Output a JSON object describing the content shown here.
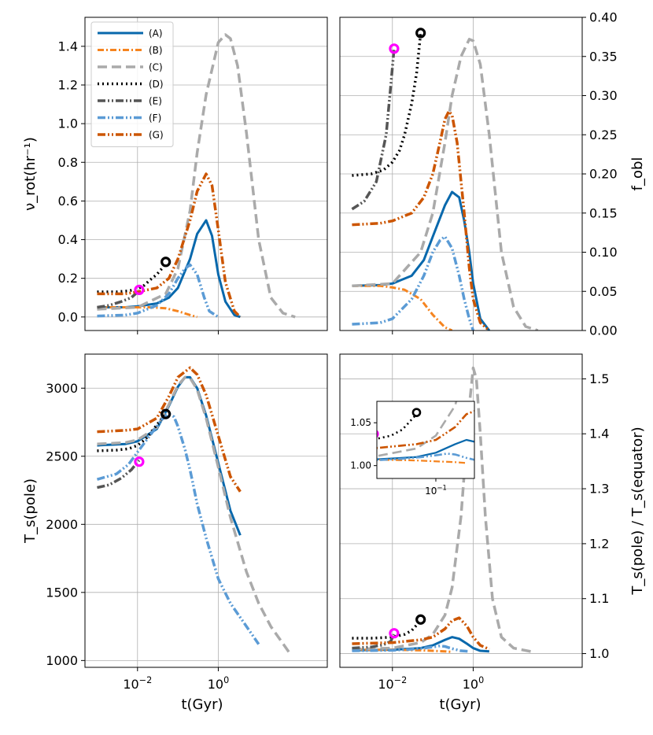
{
  "figure": {
    "x_axis_label": "t(Gyr)",
    "legend": [
      "(A)",
      "(B)",
      "(C)",
      "(D)",
      "(E)",
      "(F)",
      "(G)"
    ]
  },
  "chart_data": [
    {
      "panel": "top-left",
      "type": "line",
      "ylabel": "ν_rot(hr⁻¹)",
      "xscale": "log",
      "xlim": [
        0.0005,
        500
      ],
      "ylim": [
        -0.07,
        1.55
      ],
      "yticks": [
        0.0,
        0.2,
        0.4,
        0.6,
        0.8,
        1.0,
        1.2,
        1.4
      ],
      "ytick_labels": [
        "0.0",
        "0.2",
        "0.4",
        "0.6",
        "0.8",
        "1.0",
        "1.2",
        "1.4"
      ],
      "xticks": [
        0.01,
        1
      ],
      "grid": true,
      "legend_position": "top-left",
      "series": [
        {
          "name": "(A)",
          "x": [
            0.001,
            0.005,
            0.01,
            0.03,
            0.06,
            0.1,
            0.2,
            0.3,
            0.5,
            0.7,
            1.0,
            1.5,
            2.5,
            3.5
          ],
          "y": [
            0.05,
            0.05,
            0.055,
            0.07,
            0.1,
            0.15,
            0.3,
            0.43,
            0.5,
            0.42,
            0.22,
            0.08,
            0.01,
            0.0
          ]
        },
        {
          "name": "(B)",
          "x": [
            0.001,
            0.005,
            0.01,
            0.02,
            0.05,
            0.1,
            0.2,
            0.3
          ],
          "y": [
            0.05,
            0.05,
            0.05,
            0.05,
            0.045,
            0.03,
            0.01,
            0.0
          ]
        },
        {
          "name": "(C)",
          "x": [
            0.001,
            0.01,
            0.05,
            0.1,
            0.2,
            0.3,
            0.5,
            1.0,
            1.5,
            2.0,
            3.0,
            5.0,
            10,
            20,
            40,
            80
          ],
          "y": [
            0.04,
            0.05,
            0.12,
            0.25,
            0.55,
            0.85,
            1.15,
            1.42,
            1.46,
            1.44,
            1.3,
            0.95,
            0.4,
            0.1,
            0.02,
            0.0
          ]
        },
        {
          "name": "(D)",
          "x": [
            0.001,
            0.003,
            0.006,
            0.01,
            0.015,
            0.02,
            0.03,
            0.04,
            0.05
          ],
          "y": [
            0.13,
            0.13,
            0.135,
            0.145,
            0.165,
            0.19,
            0.22,
            0.25,
            0.28
          ]
        },
        {
          "name": "(E)",
          "x": [
            0.001,
            0.002,
            0.004,
            0.007,
            0.009,
            0.011
          ],
          "y": [
            0.05,
            0.06,
            0.08,
            0.1,
            0.12,
            0.14
          ]
        },
        {
          "name": "(F)",
          "x": [
            0.001,
            0.005,
            0.01,
            0.03,
            0.06,
            0.1,
            0.15,
            0.2,
            0.3,
            0.45,
            0.6,
            1.0
          ],
          "y": [
            0.005,
            0.01,
            0.02,
            0.06,
            0.12,
            0.2,
            0.25,
            0.27,
            0.22,
            0.1,
            0.03,
            0.0
          ]
        },
        {
          "name": "(G)",
          "x": [
            0.001,
            0.005,
            0.01,
            0.03,
            0.06,
            0.1,
            0.2,
            0.3,
            0.5,
            0.7,
            1.0,
            1.5,
            2.5,
            3.5
          ],
          "y": [
            0.12,
            0.12,
            0.13,
            0.15,
            0.2,
            0.3,
            0.5,
            0.65,
            0.74,
            0.68,
            0.45,
            0.18,
            0.03,
            0.0
          ]
        }
      ],
      "markers": [
        {
          "kind": "magenta",
          "x": 0.011,
          "y": 0.14
        },
        {
          "kind": "black",
          "x": 0.05,
          "y": 0.285
        }
      ]
    },
    {
      "panel": "top-right",
      "type": "line",
      "ylabel": "f_obl",
      "xscale": "log",
      "xlim": [
        0.0005,
        500
      ],
      "ylim": [
        0.0,
        0.4
      ],
      "yticks": [
        0.0,
        0.05,
        0.1,
        0.15,
        0.2,
        0.25,
        0.3,
        0.35,
        0.4
      ],
      "ytick_labels": [
        "0.00",
        "0.05",
        "0.10",
        "0.15",
        "0.20",
        "0.25",
        "0.30",
        "0.35",
        "0.40"
      ],
      "xticks": [
        0.01,
        1
      ],
      "grid": true,
      "series": [
        {
          "name": "(A)",
          "x": [
            0.001,
            0.005,
            0.01,
            0.03,
            0.06,
            0.1,
            0.2,
            0.3,
            0.45,
            0.6,
            0.8,
            1.0,
            1.5,
            2.5
          ],
          "y": [
            0.057,
            0.058,
            0.06,
            0.07,
            0.09,
            0.12,
            0.16,
            0.177,
            0.17,
            0.14,
            0.1,
            0.06,
            0.015,
            0.0
          ]
        },
        {
          "name": "(B)",
          "x": [
            0.001,
            0.005,
            0.01,
            0.02,
            0.05,
            0.1,
            0.2,
            0.3
          ],
          "y": [
            0.057,
            0.057,
            0.055,
            0.052,
            0.04,
            0.02,
            0.004,
            0.0
          ]
        },
        {
          "name": "(C)",
          "x": [
            0.001,
            0.01,
            0.05,
            0.1,
            0.2,
            0.3,
            0.5,
            0.8,
            1.0,
            1.5,
            2.5,
            5,
            10,
            20,
            40
          ],
          "y": [
            0.057,
            0.06,
            0.1,
            0.15,
            0.24,
            0.3,
            0.35,
            0.372,
            0.37,
            0.34,
            0.25,
            0.1,
            0.03,
            0.005,
            0.0
          ]
        },
        {
          "name": "(D)",
          "x": [
            0.001,
            0.003,
            0.006,
            0.01,
            0.015,
            0.02,
            0.03,
            0.04,
            0.05
          ],
          "y": [
            0.198,
            0.2,
            0.205,
            0.215,
            0.23,
            0.25,
            0.29,
            0.33,
            0.38
          ]
        },
        {
          "name": "(E)",
          "x": [
            0.001,
            0.002,
            0.004,
            0.007,
            0.009,
            0.011
          ],
          "y": [
            0.155,
            0.165,
            0.19,
            0.25,
            0.31,
            0.36
          ]
        },
        {
          "name": "(F)",
          "x": [
            0.001,
            0.005,
            0.01,
            0.03,
            0.06,
            0.1,
            0.15,
            0.2,
            0.3,
            0.45,
            0.6,
            0.8,
            1.0
          ],
          "y": [
            0.008,
            0.01,
            0.015,
            0.04,
            0.07,
            0.1,
            0.115,
            0.12,
            0.105,
            0.07,
            0.04,
            0.015,
            0.0
          ]
        },
        {
          "name": "(G)",
          "x": [
            0.001,
            0.005,
            0.01,
            0.03,
            0.06,
            0.1,
            0.15,
            0.2,
            0.25,
            0.3,
            0.4,
            0.6,
            0.8,
            1.0,
            1.5,
            2.5
          ],
          "y": [
            0.135,
            0.137,
            0.14,
            0.15,
            0.17,
            0.2,
            0.24,
            0.27,
            0.28,
            0.275,
            0.24,
            0.15,
            0.08,
            0.04,
            0.01,
            0.0
          ]
        }
      ],
      "markers": [
        {
          "kind": "magenta",
          "x": 0.011,
          "y": 0.36
        },
        {
          "kind": "black",
          "x": 0.05,
          "y": 0.38
        }
      ]
    },
    {
      "panel": "bottom-left",
      "type": "line",
      "ylabel": "T_s(pole)",
      "xscale": "log",
      "xlim": [
        0.0005,
        500
      ],
      "ylim": [
        950,
        3250
      ],
      "yticks": [
        1000,
        1500,
        2000,
        2500,
        3000
      ],
      "ytick_labels": [
        "1000",
        "1500",
        "2000",
        "2500",
        "3000"
      ],
      "xticks": [
        0.01,
        1
      ],
      "xtick_labels": [
        "10^-2",
        "10^0"
      ],
      "grid": true,
      "series": [
        {
          "name": "(A)",
          "x": [
            0.001,
            0.005,
            0.01,
            0.03,
            0.06,
            0.1,
            0.15,
            0.2,
            0.3,
            0.5,
            1.0,
            2.0,
            3.5
          ],
          "y": [
            2580,
            2590,
            2610,
            2700,
            2870,
            3010,
            3080,
            3080,
            3000,
            2800,
            2450,
            2100,
            1920
          ]
        },
        {
          "name": "(C)",
          "x": [
            0.001,
            0.005,
            0.01,
            0.03,
            0.06,
            0.1,
            0.15,
            0.2,
            0.3,
            0.5,
            1.0,
            2.0,
            5.0,
            10,
            20,
            60
          ],
          "y": [
            2590,
            2600,
            2620,
            2710,
            2880,
            3020,
            3080,
            3075,
            2990,
            2780,
            2420,
            2050,
            1650,
            1420,
            1250,
            1050
          ]
        },
        {
          "name": "(D)",
          "x": [
            0.001,
            0.003,
            0.006,
            0.01,
            0.015,
            0.02,
            0.03,
            0.05
          ],
          "y": [
            2540,
            2545,
            2555,
            2580,
            2620,
            2660,
            2730,
            2810
          ]
        },
        {
          "name": "(E)",
          "x": [
            0.001,
            0.002,
            0.004,
            0.007,
            0.009,
            0.011
          ],
          "y": [
            2270,
            2290,
            2340,
            2400,
            2440,
            2470
          ]
        },
        {
          "name": "(F)",
          "x": [
            0.001,
            0.003,
            0.006,
            0.01,
            0.02,
            0.04,
            0.06,
            0.08,
            0.1,
            0.15,
            0.2,
            0.3,
            0.5,
            1.0,
            2.0,
            5.0,
            10
          ],
          "y": [
            2330,
            2370,
            2440,
            2530,
            2650,
            2770,
            2810,
            2790,
            2720,
            2550,
            2400,
            2150,
            1900,
            1600,
            1420,
            1250,
            1120
          ]
        },
        {
          "name": "(G)",
          "x": [
            0.001,
            0.005,
            0.01,
            0.03,
            0.06,
            0.1,
            0.2,
            0.3,
            0.5,
            1.0,
            2.0,
            3.5
          ],
          "y": [
            2680,
            2690,
            2700,
            2780,
            2940,
            3080,
            3150,
            3100,
            2950,
            2650,
            2350,
            2240
          ]
        }
      ],
      "markers": [
        {
          "kind": "magenta",
          "x": 0.011,
          "y": 2460
        },
        {
          "kind": "black",
          "x": 0.05,
          "y": 2810
        }
      ]
    },
    {
      "panel": "bottom-right",
      "type": "line",
      "ylabel": "T_s(pole) / T_s(equator)",
      "xscale": "log",
      "xlim": [
        0.0005,
        500
      ],
      "ylim": [
        0.975,
        1.545
      ],
      "yticks": [
        1.0,
        1.1,
        1.2,
        1.3,
        1.4,
        1.5
      ],
      "ytick_labels": [
        "1.0",
        "1.1",
        "1.2",
        "1.3",
        "1.4",
        "1.5"
      ],
      "xticks": [
        0.01,
        1
      ],
      "xtick_labels": [
        "10^-2",
        "10^0"
      ],
      "grid": true,
      "series": [
        {
          "name": "(A)",
          "x": [
            0.001,
            0.01,
            0.05,
            0.1,
            0.2,
            0.3,
            0.45,
            0.7,
            1.0,
            1.5,
            2.5
          ],
          "y": [
            1.006,
            1.007,
            1.01,
            1.015,
            1.025,
            1.03,
            1.027,
            1.018,
            1.01,
            1.005,
            1.004
          ]
        },
        {
          "name": "(B)",
          "x": [
            0.001,
            0.01,
            0.05,
            0.1,
            0.2,
            0.3
          ],
          "y": [
            1.007,
            1.007,
            1.006,
            1.005,
            1.004,
            1.003
          ]
        },
        {
          "name": "(C)",
          "x": [
            0.001,
            0.01,
            0.05,
            0.1,
            0.2,
            0.3,
            0.5,
            0.8,
            1.0,
            1.2,
            1.5,
            2.0,
            3.0,
            5.0,
            10,
            30
          ],
          "y": [
            1.008,
            1.01,
            1.02,
            1.035,
            1.07,
            1.12,
            1.25,
            1.45,
            1.52,
            1.5,
            1.4,
            1.25,
            1.1,
            1.03,
            1.01,
            1.003
          ]
        },
        {
          "name": "(D)",
          "x": [
            0.001,
            0.003,
            0.006,
            0.01,
            0.02,
            0.03,
            0.05
          ],
          "y": [
            1.028,
            1.028,
            1.029,
            1.03,
            1.035,
            1.042,
            1.06
          ]
        },
        {
          "name": "(E)",
          "x": [
            0.001,
            0.003,
            0.006,
            0.009,
            0.011
          ],
          "y": [
            1.01,
            1.012,
            1.016,
            1.022,
            1.035
          ]
        },
        {
          "name": "(F)",
          "x": [
            0.001,
            0.01,
            0.03,
            0.06,
            0.1,
            0.15,
            0.2,
            0.3,
            0.5,
            0.8
          ],
          "y": [
            1.005,
            1.006,
            1.008,
            1.01,
            1.012,
            1.014,
            1.013,
            1.009,
            1.005,
            1.004
          ]
        },
        {
          "name": "(G)",
          "x": [
            0.001,
            0.01,
            0.05,
            0.1,
            0.2,
            0.3,
            0.45,
            0.7,
            1.0,
            1.5,
            2.5
          ],
          "y": [
            1.018,
            1.02,
            1.025,
            1.03,
            1.045,
            1.06,
            1.065,
            1.05,
            1.03,
            1.015,
            1.008
          ]
        }
      ],
      "markers": [
        {
          "kind": "magenta",
          "x": 0.011,
          "y": 1.037
        },
        {
          "kind": "black",
          "x": 0.05,
          "y": 1.062
        }
      ],
      "inset": {
        "xlim": [
          0.012,
          0.4
        ],
        "ylim": [
          0.985,
          1.075
        ],
        "yticks": [
          1.0,
          1.05
        ],
        "ytick_labels": [
          "1.00",
          "1.05"
        ],
        "xticks": [
          0.1
        ],
        "xtick_labels": [
          "10^-1"
        ]
      }
    }
  ],
  "styles": {
    "(A)": {
      "color": "#0868ac",
      "dash": "",
      "width": 3
    },
    "(B)": {
      "color": "#f5841f",
      "dash": "8,3,2,3",
      "width": 3
    },
    "(C)": {
      "color": "#aaaaaa",
      "dash": "12,6",
      "width": 3.5
    },
    "(D)": {
      "color": "#000000",
      "dash": "2,4",
      "width": 3.5
    },
    "(E)": {
      "color": "#555555",
      "dash": "10,3,2,3,2,3",
      "width": 3.5
    },
    "(F)": {
      "color": "#5b9bd5",
      "dash": "10,3,2,3,2,3",
      "width": 3.5
    },
    "(G)": {
      "color": "#cc5500",
      "dash": "10,3,2,3,2,3",
      "width": 3.5
    }
  },
  "marker_colors": {
    "magenta": "#ff00ff",
    "black": "#000000"
  }
}
